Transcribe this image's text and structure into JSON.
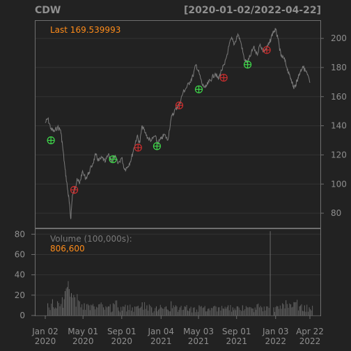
{
  "chart_data": {
    "type": "line",
    "title": "CDW",
    "date_range": "[2020-01-02/2022-04-22]",
    "last_label": "Last 169.539993",
    "volume_label": "Volume (100,000s):",
    "volume_last": "806,600",
    "price_ylim": [
      70,
      212
    ],
    "price_ticks": [
      80,
      100,
      120,
      140,
      160,
      180,
      200
    ],
    "volume_ylim": [
      0,
      85
    ],
    "volume_ticks": [
      0,
      20,
      40,
      60,
      80
    ],
    "x_range": [
      "2020-01-02",
      "2022-04-22"
    ],
    "x_ticks": [
      {
        "date": "2020-01-02",
        "l1": "Jan 02",
        "l2": "2020"
      },
      {
        "date": "2020-05-01",
        "l1": "May 01",
        "l2": "2020"
      },
      {
        "date": "2020-09-01",
        "l1": "Sep 01",
        "l2": "2020"
      },
      {
        "date": "2021-01-04",
        "l1": "Jan 04",
        "l2": "2021"
      },
      {
        "date": "2021-05-03",
        "l1": "May 03",
        "l2": "2021"
      },
      {
        "date": "2021-09-01",
        "l1": "Sep 01",
        "l2": "2021"
      },
      {
        "date": "2022-01-03",
        "l1": "Jan 03",
        "l2": "2022"
      },
      {
        "date": "2022-04-22",
        "l1": "Apr 22",
        "l2": "2022"
      }
    ],
    "price_series": [
      [
        "2020-01-02",
        142
      ],
      [
        "2020-01-10",
        145
      ],
      [
        "2020-01-20",
        138
      ],
      [
        "2020-01-30",
        136
      ],
      [
        "2020-02-10",
        139
      ],
      [
        "2020-02-20",
        137
      ],
      [
        "2020-02-26",
        126
      ],
      [
        "2020-03-05",
        110
      ],
      [
        "2020-03-12",
        98
      ],
      [
        "2020-03-18",
        88
      ],
      [
        "2020-03-23",
        76
      ],
      [
        "2020-03-28",
        92
      ],
      [
        "2020-04-05",
        96
      ],
      [
        "2020-04-12",
        104
      ],
      [
        "2020-04-20",
        100
      ],
      [
        "2020-04-28",
        108
      ],
      [
        "2020-05-10",
        104
      ],
      [
        "2020-05-20",
        108
      ],
      [
        "2020-06-01",
        114
      ],
      [
        "2020-06-10",
        120
      ],
      [
        "2020-06-20",
        116
      ],
      [
        "2020-07-01",
        118
      ],
      [
        "2020-07-10",
        115
      ],
      [
        "2020-07-20",
        120
      ],
      [
        "2020-08-01",
        116
      ],
      [
        "2020-08-10",
        119
      ],
      [
        "2020-08-20",
        114
      ],
      [
        "2020-09-01",
        118
      ],
      [
        "2020-09-10",
        110
      ],
      [
        "2020-09-20",
        112
      ],
      [
        "2020-10-01",
        117
      ],
      [
        "2020-10-10",
        125
      ],
      [
        "2020-10-20",
        133
      ],
      [
        "2020-10-28",
        128
      ],
      [
        "2020-11-05",
        140
      ],
      [
        "2020-11-15",
        135
      ],
      [
        "2020-11-25",
        131
      ],
      [
        "2020-12-05",
        130
      ],
      [
        "2020-12-15",
        133
      ],
      [
        "2020-12-25",
        128
      ],
      [
        "2021-01-04",
        131
      ],
      [
        "2021-01-15",
        134
      ],
      [
        "2021-01-25",
        130
      ],
      [
        "2021-02-05",
        145
      ],
      [
        "2021-02-15",
        150
      ],
      [
        "2021-02-25",
        153
      ],
      [
        "2021-03-05",
        156
      ],
      [
        "2021-03-15",
        163
      ],
      [
        "2021-03-25",
        166
      ],
      [
        "2021-04-05",
        170
      ],
      [
        "2021-04-15",
        174
      ],
      [
        "2021-04-25",
        182
      ],
      [
        "2021-05-05",
        176
      ],
      [
        "2021-05-15",
        168
      ],
      [
        "2021-05-25",
        166
      ],
      [
        "2021-06-05",
        170
      ],
      [
        "2021-06-15",
        173
      ],
      [
        "2021-06-25",
        176
      ],
      [
        "2021-07-05",
        172
      ],
      [
        "2021-07-15",
        178
      ],
      [
        "2021-07-25",
        182
      ],
      [
        "2021-08-05",
        192
      ],
      [
        "2021-08-15",
        200
      ],
      [
        "2021-08-25",
        196
      ],
      [
        "2021-09-05",
        203
      ],
      [
        "2021-09-15",
        197
      ],
      [
        "2021-09-25",
        186
      ],
      [
        "2021-10-05",
        183
      ],
      [
        "2021-10-15",
        188
      ],
      [
        "2021-10-25",
        194
      ],
      [
        "2021-11-05",
        189
      ],
      [
        "2021-11-15",
        196
      ],
      [
        "2021-11-25",
        191
      ],
      [
        "2021-12-05",
        193
      ],
      [
        "2021-12-15",
        197
      ],
      [
        "2021-12-25",
        204
      ],
      [
        "2022-01-03",
        206
      ],
      [
        "2022-01-10",
        200
      ],
      [
        "2022-01-20",
        188
      ],
      [
        "2022-01-30",
        186
      ],
      [
        "2022-02-08",
        180
      ],
      [
        "2022-02-15",
        175
      ],
      [
        "2022-02-22",
        172
      ],
      [
        "2022-03-01",
        166
      ],
      [
        "2022-03-08",
        168
      ],
      [
        "2022-03-15",
        173
      ],
      [
        "2022-03-22",
        177
      ],
      [
        "2022-03-30",
        181
      ],
      [
        "2022-04-07",
        178
      ],
      [
        "2022-04-14",
        175
      ],
      [
        "2022-04-22",
        169.54
      ]
    ],
    "signals": [
      {
        "date": "2020-01-20",
        "price": 130,
        "type": "buy"
      },
      {
        "date": "2020-04-03",
        "price": 96,
        "type": "sell"
      },
      {
        "date": "2020-08-04",
        "price": 117,
        "type": "buy"
      },
      {
        "date": "2020-10-23",
        "price": 125,
        "type": "sell"
      },
      {
        "date": "2020-12-22",
        "price": 126,
        "type": "buy"
      },
      {
        "date": "2021-03-03",
        "price": 154,
        "type": "sell"
      },
      {
        "date": "2021-05-04",
        "price": 165,
        "type": "buy"
      },
      {
        "date": "2021-07-22",
        "price": 173,
        "type": "sell"
      },
      {
        "date": "2021-10-06",
        "price": 182,
        "type": "buy"
      },
      {
        "date": "2021-12-06",
        "price": 192,
        "type": "sell"
      }
    ],
    "volume_series": [
      [
        "2020-01-10",
        12
      ],
      [
        "2020-01-25",
        16
      ],
      [
        "2020-02-10",
        14
      ],
      [
        "2020-02-25",
        18
      ],
      [
        "2020-03-05",
        24
      ],
      [
        "2020-03-12",
        28
      ],
      [
        "2020-03-18",
        26
      ],
      [
        "2020-03-25",
        22
      ],
      [
        "2020-04-05",
        18
      ],
      [
        "2020-04-20",
        14
      ],
      [
        "2020-05-05",
        12
      ],
      [
        "2020-05-20",
        10
      ],
      [
        "2020-06-05",
        9
      ],
      [
        "2020-06-20",
        11
      ],
      [
        "2020-07-05",
        8
      ],
      [
        "2020-07-20",
        9
      ],
      [
        "2020-08-05",
        12
      ],
      [
        "2020-08-20",
        8
      ],
      [
        "2020-09-05",
        9
      ],
      [
        "2020-09-20",
        10
      ],
      [
        "2020-10-05",
        8
      ],
      [
        "2020-10-20",
        9
      ],
      [
        "2020-11-05",
        13
      ],
      [
        "2020-11-20",
        10
      ],
      [
        "2020-12-05",
        8
      ],
      [
        "2020-12-20",
        9
      ],
      [
        "2021-01-05",
        8
      ],
      [
        "2021-01-20",
        9
      ],
      [
        "2021-02-05",
        14
      ],
      [
        "2021-02-20",
        10
      ],
      [
        "2021-03-05",
        8
      ],
      [
        "2021-03-20",
        9
      ],
      [
        "2021-04-05",
        7
      ],
      [
        "2021-04-20",
        8
      ],
      [
        "2021-05-05",
        10
      ],
      [
        "2021-05-20",
        8
      ],
      [
        "2021-06-05",
        7
      ],
      [
        "2021-06-20",
        9
      ],
      [
        "2021-07-05",
        8
      ],
      [
        "2021-07-20",
        7
      ],
      [
        "2021-08-05",
        10
      ],
      [
        "2021-08-20",
        8
      ],
      [
        "2021-09-05",
        9
      ],
      [
        "2021-09-20",
        10
      ],
      [
        "2021-10-05",
        8
      ],
      [
        "2021-10-20",
        7
      ],
      [
        "2021-11-05",
        11
      ],
      [
        "2021-11-20",
        8
      ],
      [
        "2021-12-05",
        9
      ],
      [
        "2021-12-17",
        83
      ],
      [
        "2021-12-28",
        8
      ],
      [
        "2022-01-10",
        9
      ],
      [
        "2022-01-25",
        12
      ],
      [
        "2022-02-05",
        15
      ],
      [
        "2022-02-20",
        11
      ],
      [
        "2022-03-05",
        13
      ],
      [
        "2022-03-20",
        9
      ],
      [
        "2022-04-05",
        10
      ],
      [
        "2022-04-20",
        8
      ]
    ],
    "colors": {
      "background": "#222222",
      "line": "#7a7a7a",
      "accent": "#ff8c1a",
      "buy": "#3fd94a",
      "sell": "#cc2e2e"
    }
  }
}
